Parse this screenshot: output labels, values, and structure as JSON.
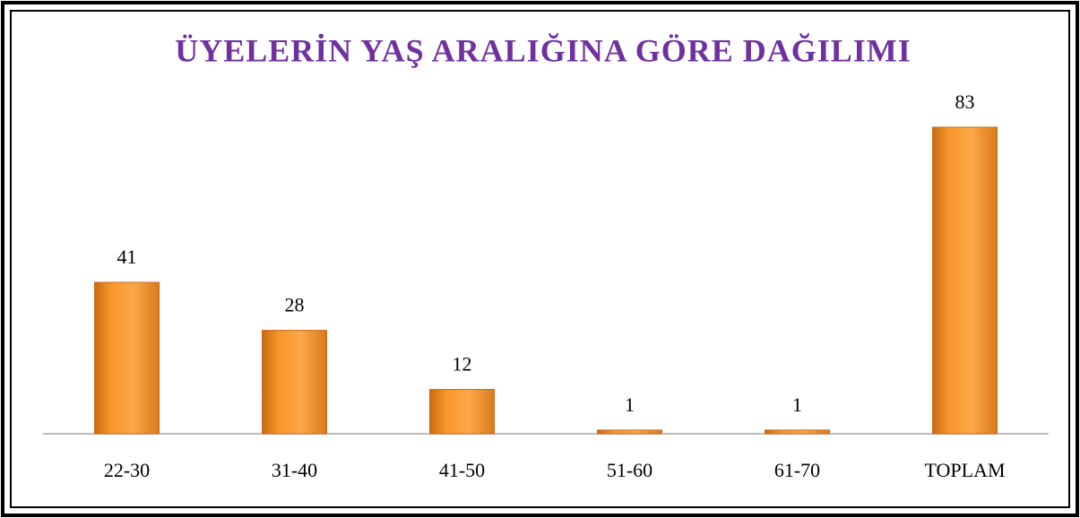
{
  "chart_data": {
    "type": "bar",
    "title": "ÜYELERİN YAŞ ARALIĞINA GÖRE DAĞILIMI",
    "categories": [
      "22-30",
      "31-40",
      "41-50",
      "51-60",
      "61-70",
      "TOPLAM"
    ],
    "values": [
      41,
      28,
      12,
      1,
      1,
      83
    ],
    "color": "#f7962b"
  }
}
